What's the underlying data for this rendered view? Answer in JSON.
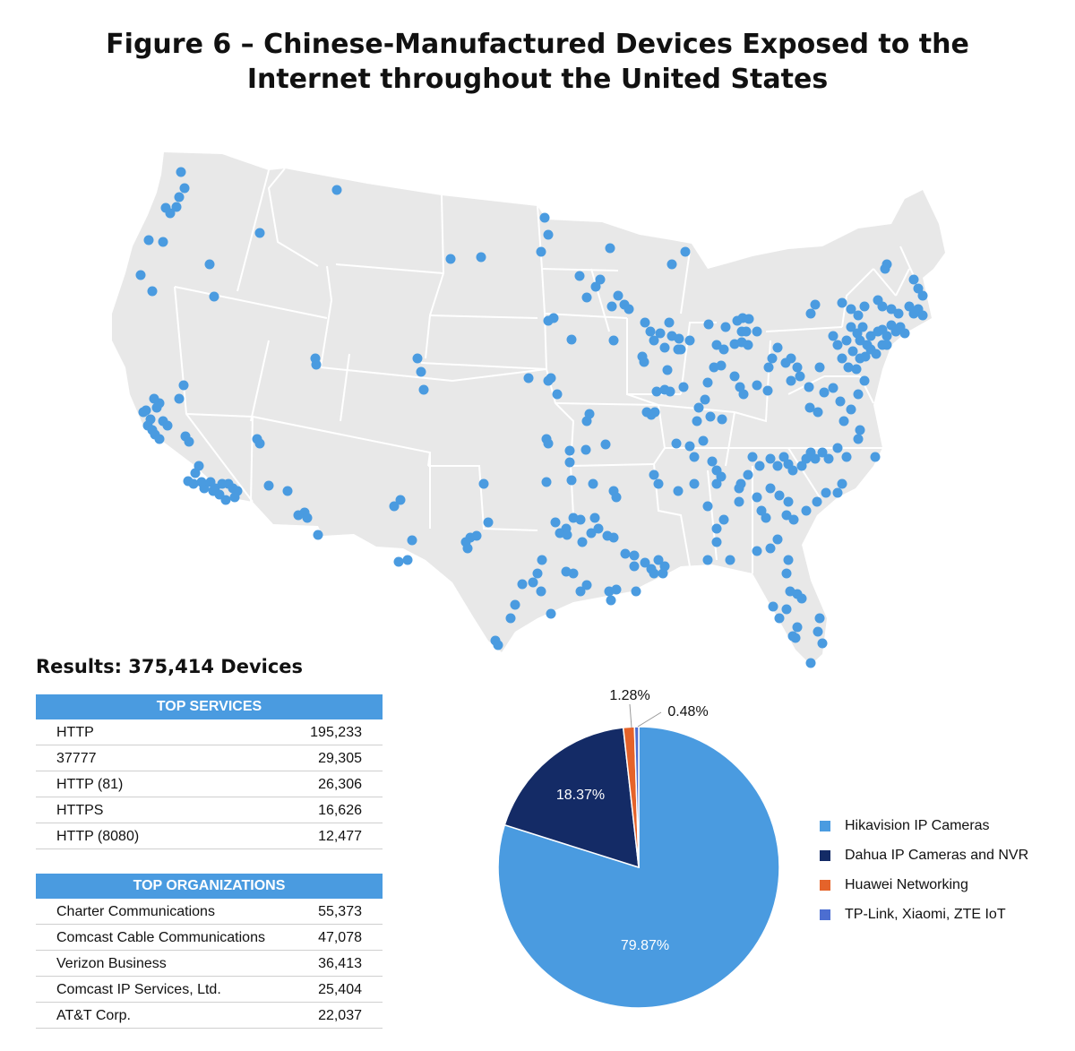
{
  "title_line1": "Figure 6 – Chinese-Manufactured Devices Exposed to the",
  "title_line2": "Internet throughout the United States",
  "results": "Results: 375,414 Devices",
  "top_services": {
    "header": "TOP SERVICES",
    "rows": [
      {
        "name": "HTTP",
        "value": "195,233"
      },
      {
        "name": "37777",
        "value": "29,305"
      },
      {
        "name": "HTTP (81)",
        "value": "26,306"
      },
      {
        "name": "HTTPS",
        "value": "16,626"
      },
      {
        "name": "HTTP (8080)",
        "value": "12,477"
      }
    ]
  },
  "top_organizations": {
    "header": "TOP ORGANIZATIONS",
    "rows": [
      {
        "name": "Charter Communications",
        "value": "55,373"
      },
      {
        "name": "Comcast Cable Communications",
        "value": "47,078"
      },
      {
        "name": "Verizon Business",
        "value": "36,413"
      },
      {
        "name": "Comcast IP Services, Ltd.",
        "value": "25,404"
      },
      {
        "name": "AT&T Corp.",
        "value": "22,037"
      }
    ]
  },
  "map": {
    "land_color": "#E8E8E8",
    "border_color": "#FFFFFF",
    "dot_color": "#4A9BE0"
  },
  "chart_data": {
    "type": "pie",
    "slices": [
      {
        "label": "Hikavision IP Cameras",
        "value": 79.87,
        "text": "79.87%",
        "color": "#4A9BE0"
      },
      {
        "label": "Dahua IP Cameras and NVR",
        "value": 18.37,
        "text": "18.37%",
        "color": "#142B66"
      },
      {
        "label": "Huawei Networking",
        "value": 1.28,
        "text": "1.28%",
        "color": "#E5632A"
      },
      {
        "label": "TP-Link, Xiaomi, ZTE IoT",
        "value": 0.48,
        "text": "0.48%",
        "color": "#4C6ED1"
      }
    ],
    "legend_position": "right"
  }
}
